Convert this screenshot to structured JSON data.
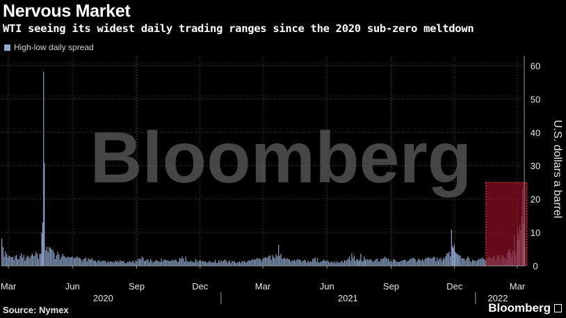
{
  "header": {
    "title": "Nervous Market",
    "subtitle": "WTI seeing its widest daily trading ranges since the 2020 sub-zero meltdown"
  },
  "footer": {
    "source": "Source: Nymex",
    "brand": "Bloomberg"
  },
  "watermark": "Bloomberg",
  "colors": {
    "bar": "#8fa7cc",
    "highlight_fill": "#8b0f22",
    "highlight_border": "#ff3b3b",
    "grid": "#555555",
    "background": "#000000"
  },
  "chart_data": {
    "type": "bar",
    "title": "Nervous Market",
    "subtitle": "WTI seeing its widest daily trading ranges since the 2020 sub-zero meltdown",
    "xlabel": "",
    "ylabel": "U.S. dollars a barrel",
    "ylim": [
      0,
      63
    ],
    "yticks": [
      0,
      10,
      20,
      30,
      40,
      50,
      60
    ],
    "grid": true,
    "legend_position": "top-left",
    "x_range": [
      "2020-02-20",
      "2022-03-11"
    ],
    "month_ticks": [
      {
        "label": "Mar",
        "date": "2020-03-01"
      },
      {
        "label": "Jun",
        "date": "2020-06-01"
      },
      {
        "label": "Sep",
        "date": "2020-09-01"
      },
      {
        "label": "Dec",
        "date": "2020-12-01"
      },
      {
        "label": "Mar",
        "date": "2021-03-01"
      },
      {
        "label": "Jun",
        "date": "2021-06-01"
      },
      {
        "label": "Sep",
        "date": "2021-09-01"
      },
      {
        "label": "Dec",
        "date": "2021-12-01"
      },
      {
        "label": "Mar",
        "date": "2022-03-01"
      }
    ],
    "year_labels": [
      {
        "label": "2020",
        "date": "2020-07-15"
      },
      {
        "label": "2021",
        "date": "2021-07-01"
      },
      {
        "label": "2022",
        "date": "2022-02-01"
      }
    ],
    "year_dividers": [
      "2020-12-31",
      "2021-12-31"
    ],
    "highlight": {
      "x_start": "2022-01-15",
      "x_end": "2022-03-11",
      "y_min": 0,
      "y_max": 25
    },
    "series": [
      {
        "name": "High-low daily spread",
        "points": [
          [
            "2020-02-20",
            8.2
          ],
          [
            "2020-02-27",
            3.5
          ],
          [
            "2020-03-05",
            2.6
          ],
          [
            "2020-03-12",
            3.2
          ],
          [
            "2020-03-19",
            3.8
          ],
          [
            "2020-03-26",
            2.4
          ],
          [
            "2020-04-02",
            3.1
          ],
          [
            "2020-04-09",
            4.2
          ],
          [
            "2020-04-16",
            3.6
          ],
          [
            "2020-04-20",
            58.2
          ],
          [
            "2020-04-21",
            30.8
          ],
          [
            "2020-04-23",
            4.6
          ],
          [
            "2020-04-28",
            5.6
          ],
          [
            "2020-05-05",
            4.0
          ],
          [
            "2020-05-12",
            3.4
          ],
          [
            "2020-05-19",
            3.0
          ],
          [
            "2020-05-26",
            2.6
          ],
          [
            "2020-06-02",
            2.2
          ],
          [
            "2020-06-09",
            2.4
          ],
          [
            "2020-06-16",
            2.0
          ],
          [
            "2020-06-23",
            2.3
          ],
          [
            "2020-06-30",
            1.8
          ],
          [
            "2020-07-07",
            1.6
          ],
          [
            "2020-07-14",
            1.5
          ],
          [
            "2020-07-21",
            1.4
          ],
          [
            "2020-07-28",
            1.3
          ],
          [
            "2020-08-04",
            1.5
          ],
          [
            "2020-08-11",
            1.4
          ],
          [
            "2020-08-18",
            1.2
          ],
          [
            "2020-08-25",
            1.3
          ],
          [
            "2020-09-01",
            1.4
          ],
          [
            "2020-09-08",
            2.7
          ],
          [
            "2020-09-15",
            1.9
          ],
          [
            "2020-09-22",
            1.6
          ],
          [
            "2020-09-29",
            1.7
          ],
          [
            "2020-10-06",
            2.2
          ],
          [
            "2020-10-13",
            1.6
          ],
          [
            "2020-10-20",
            1.5
          ],
          [
            "2020-10-27",
            1.8
          ],
          [
            "2020-11-03",
            2.1
          ],
          [
            "2020-11-10",
            2.8
          ],
          [
            "2020-11-17",
            1.6
          ],
          [
            "2020-11-24",
            1.9
          ],
          [
            "2020-12-01",
            1.7
          ],
          [
            "2020-12-08",
            1.4
          ],
          [
            "2020-12-15",
            1.3
          ],
          [
            "2020-12-22",
            1.8
          ],
          [
            "2020-12-29",
            1.2
          ],
          [
            "2021-01-05",
            1.9
          ],
          [
            "2021-01-12",
            1.5
          ],
          [
            "2021-01-19",
            1.4
          ],
          [
            "2021-01-26",
            1.3
          ],
          [
            "2021-02-02",
            1.5
          ],
          [
            "2021-02-09",
            1.6
          ],
          [
            "2021-02-16",
            2.0
          ],
          [
            "2021-02-23",
            2.1
          ],
          [
            "2021-03-02",
            2.4
          ],
          [
            "2021-03-09",
            3.0
          ],
          [
            "2021-03-16",
            2.6
          ],
          [
            "2021-03-23",
            6.3
          ],
          [
            "2021-03-30",
            2.2
          ],
          [
            "2021-04-06",
            2.0
          ],
          [
            "2021-04-13",
            1.6
          ],
          [
            "2021-04-20",
            2.0
          ],
          [
            "2021-04-27",
            1.5
          ],
          [
            "2021-05-04",
            1.6
          ],
          [
            "2021-05-11",
            2.1
          ],
          [
            "2021-05-18",
            2.3
          ],
          [
            "2021-05-25",
            1.5
          ],
          [
            "2021-06-01",
            1.6
          ],
          [
            "2021-06-08",
            1.3
          ],
          [
            "2021-06-15",
            1.4
          ],
          [
            "2021-06-22",
            1.5
          ],
          [
            "2021-06-29",
            1.8
          ],
          [
            "2021-07-06",
            3.8
          ],
          [
            "2021-07-13",
            2.0
          ],
          [
            "2021-07-19",
            3.6
          ],
          [
            "2021-07-27",
            1.8
          ],
          [
            "2021-08-03",
            1.9
          ],
          [
            "2021-08-10",
            2.0
          ],
          [
            "2021-08-17",
            2.1
          ],
          [
            "2021-08-24",
            2.4
          ],
          [
            "2021-08-31",
            1.7
          ],
          [
            "2021-09-07",
            1.6
          ],
          [
            "2021-09-14",
            1.5
          ],
          [
            "2021-09-21",
            1.8
          ],
          [
            "2021-09-28",
            2.2
          ],
          [
            "2021-10-05",
            2.0
          ],
          [
            "2021-10-12",
            1.8
          ],
          [
            "2021-10-19",
            2.1
          ],
          [
            "2021-10-26",
            2.4
          ],
          [
            "2021-11-02",
            2.6
          ],
          [
            "2021-11-09",
            2.2
          ],
          [
            "2021-11-16",
            2.1
          ],
          [
            "2021-11-26",
            10.9
          ],
          [
            "2021-11-30",
            6.5
          ],
          [
            "2021-12-01",
            4.2
          ],
          [
            "2021-12-07",
            3.2
          ],
          [
            "2021-12-14",
            2.2
          ],
          [
            "2021-12-21",
            2.4
          ],
          [
            "2021-12-28",
            1.6
          ],
          [
            "2022-01-04",
            2.0
          ],
          [
            "2022-01-11",
            2.1
          ],
          [
            "2022-01-18",
            2.5
          ],
          [
            "2022-01-25",
            3.0
          ],
          [
            "2022-02-01",
            2.8
          ],
          [
            "2022-02-08",
            3.2
          ],
          [
            "2022-02-14",
            3.6
          ],
          [
            "2022-02-18",
            5.0
          ],
          [
            "2022-02-22",
            4.6
          ],
          [
            "2022-02-24",
            9.4
          ],
          [
            "2022-02-25",
            4.2
          ],
          [
            "2022-02-28",
            7.8
          ],
          [
            "2022-03-01",
            11.2
          ],
          [
            "2022-03-02",
            9.6
          ],
          [
            "2022-03-03",
            8.0
          ],
          [
            "2022-03-04",
            12.2
          ],
          [
            "2022-03-07",
            14.8
          ],
          [
            "2022-03-08",
            23.1
          ],
          [
            "2022-03-09",
            12.6
          ],
          [
            "2022-03-10",
            10.4
          ],
          [
            "2022-03-11",
            5.4
          ]
        ]
      }
    ]
  }
}
